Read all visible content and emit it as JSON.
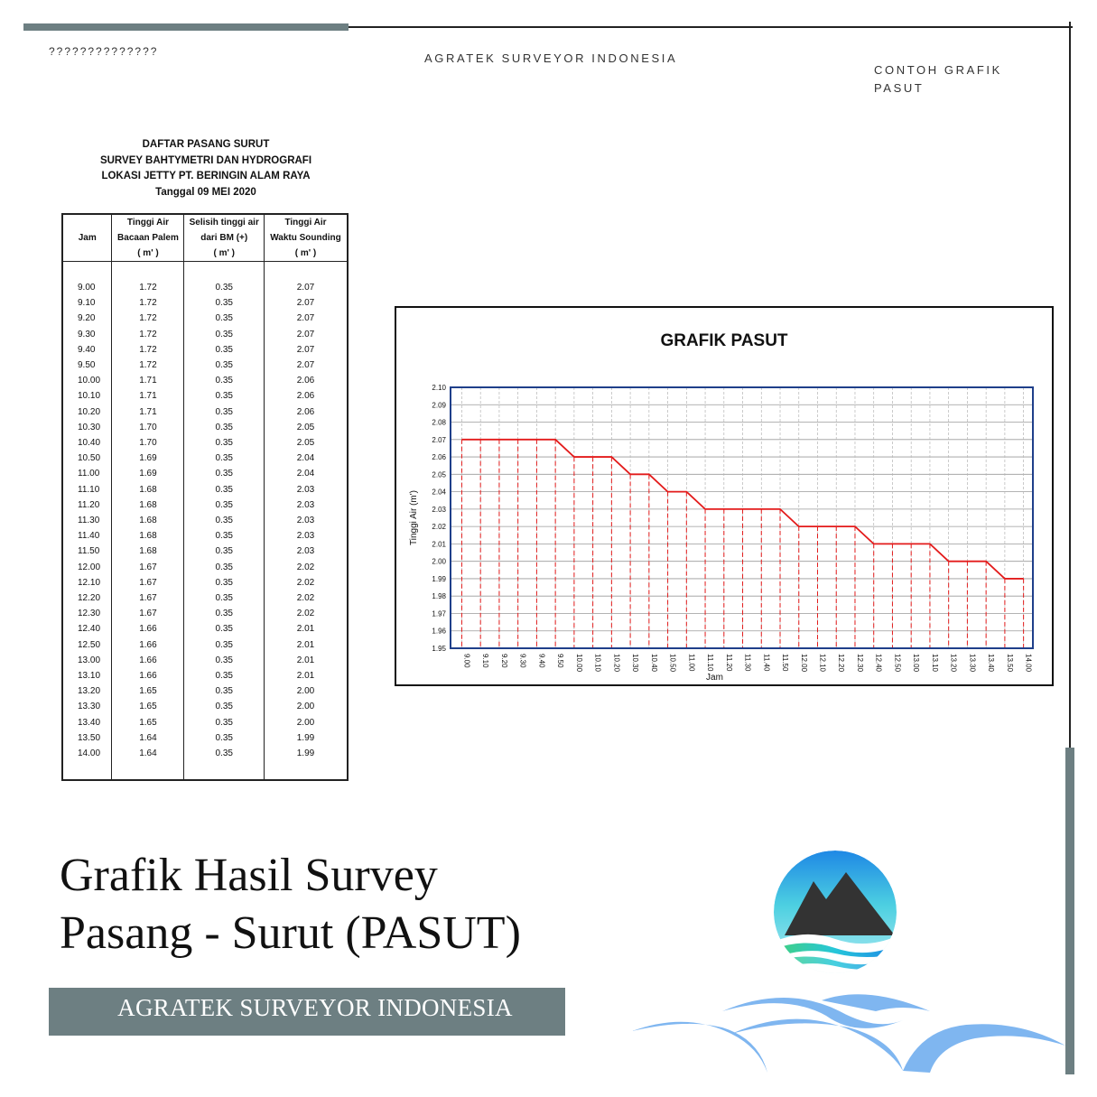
{
  "header": {
    "question_marks": "??????????????",
    "company": "AGRATEK SURVEYOR INDONESIA",
    "caption_line1": "CONTOH GRAFIK",
    "caption_line2": "PASUT"
  },
  "table": {
    "title_lines": [
      "DAFTAR  PASANG SURUT",
      "SURVEY BAHTYMETRI DAN HYDROGRAFI",
      "LOKASI JETTY PT. BERINGIN ALAM RAYA",
      "Tanggal 09 MEI 2020"
    ],
    "headers": {
      "jam": "Jam",
      "col2": [
        "Tinggi Air",
        "Bacaan Palem",
        "( m' )"
      ],
      "col3": [
        "Selisih tinggi air",
        "dari BM  (+)",
        "( m' )"
      ],
      "col4": [
        "Tinggi Air",
        "Waktu Sounding",
        "( m' )"
      ]
    },
    "rows": [
      [
        "9.00",
        "1.72",
        "0.35",
        "2.07"
      ],
      [
        "9.10",
        "1.72",
        "0.35",
        "2.07"
      ],
      [
        "9.20",
        "1.72",
        "0.35",
        "2.07"
      ],
      [
        "9.30",
        "1.72",
        "0.35",
        "2.07"
      ],
      [
        "9.40",
        "1.72",
        "0.35",
        "2.07"
      ],
      [
        "9.50",
        "1.72",
        "0.35",
        "2.07"
      ],
      [
        "10.00",
        "1.71",
        "0.35",
        "2.06"
      ],
      [
        "10.10",
        "1.71",
        "0.35",
        "2.06"
      ],
      [
        "10.20",
        "1.71",
        "0.35",
        "2.06"
      ],
      [
        "10.30",
        "1.70",
        "0.35",
        "2.05"
      ],
      [
        "10.40",
        "1.70",
        "0.35",
        "2.05"
      ],
      [
        "10.50",
        "1.69",
        "0.35",
        "2.04"
      ],
      [
        "11.00",
        "1.69",
        "0.35",
        "2.04"
      ],
      [
        "11.10",
        "1.68",
        "0.35",
        "2.03"
      ],
      [
        "11.20",
        "1.68",
        "0.35",
        "2.03"
      ],
      [
        "11.30",
        "1.68",
        "0.35",
        "2.03"
      ],
      [
        "11.40",
        "1.68",
        "0.35",
        "2.03"
      ],
      [
        "11.50",
        "1.68",
        "0.35",
        "2.03"
      ],
      [
        "12.00",
        "1.67",
        "0.35",
        "2.02"
      ],
      [
        "12.10",
        "1.67",
        "0.35",
        "2.02"
      ],
      [
        "12.20",
        "1.67",
        "0.35",
        "2.02"
      ],
      [
        "12.30",
        "1.67",
        "0.35",
        "2.02"
      ],
      [
        "12.40",
        "1.66",
        "0.35",
        "2.01"
      ],
      [
        "12.50",
        "1.66",
        "0.35",
        "2.01"
      ],
      [
        "13.00",
        "1.66",
        "0.35",
        "2.01"
      ],
      [
        "13.10",
        "1.66",
        "0.35",
        "2.01"
      ],
      [
        "13.20",
        "1.65",
        "0.35",
        "2.00"
      ],
      [
        "13.30",
        "1.65",
        "0.35",
        "2.00"
      ],
      [
        "13.40",
        "1.65",
        "0.35",
        "2.00"
      ],
      [
        "13.50",
        "1.64",
        "0.35",
        "1.99"
      ],
      [
        "14.00",
        "1.64",
        "0.35",
        "1.99"
      ]
    ]
  },
  "chart_data": {
    "type": "line",
    "title": "GRAFIK PASUT",
    "xlabel": "Jam",
    "ylabel": "Tinggi Air (m')",
    "ylim": [
      1.95,
      2.1
    ],
    "ytick_step": 0.01,
    "grid": true,
    "drop_lines": true,
    "line_color": "#e31b1b",
    "frame_color": "#1f3f8a",
    "categories": [
      "9.00",
      "9.10",
      "9.20",
      "9.30",
      "9.40",
      "9.50",
      "10.00",
      "10.10",
      "10.20",
      "10.30",
      "10.40",
      "10.50",
      "11.00",
      "11.10",
      "11.20",
      "11.30",
      "11.40",
      "11.50",
      "12.00",
      "12.10",
      "12.20",
      "12.30",
      "12.40",
      "12.50",
      "13.00",
      "13.10",
      "13.20",
      "13.30",
      "13.40",
      "13.50",
      "14.00"
    ],
    "values": [
      2.07,
      2.07,
      2.07,
      2.07,
      2.07,
      2.07,
      2.06,
      2.06,
      2.06,
      2.05,
      2.05,
      2.04,
      2.04,
      2.03,
      2.03,
      2.03,
      2.03,
      2.03,
      2.02,
      2.02,
      2.02,
      2.02,
      2.01,
      2.01,
      2.01,
      2.01,
      2.0,
      2.0,
      2.0,
      1.99,
      1.99
    ]
  },
  "title": {
    "line1": "Grafik Hasil Survey",
    "line2": "Pasang - Surut (PASUT)"
  },
  "footer": {
    "text": "AGRATEK SURVEYOR INDONESIA"
  },
  "colors": {
    "bar_gray": "#6d7f82",
    "wave_blue": "#7fb6f0",
    "logo_cyan": "#26c6da",
    "logo_green": "#3ecf7a"
  }
}
